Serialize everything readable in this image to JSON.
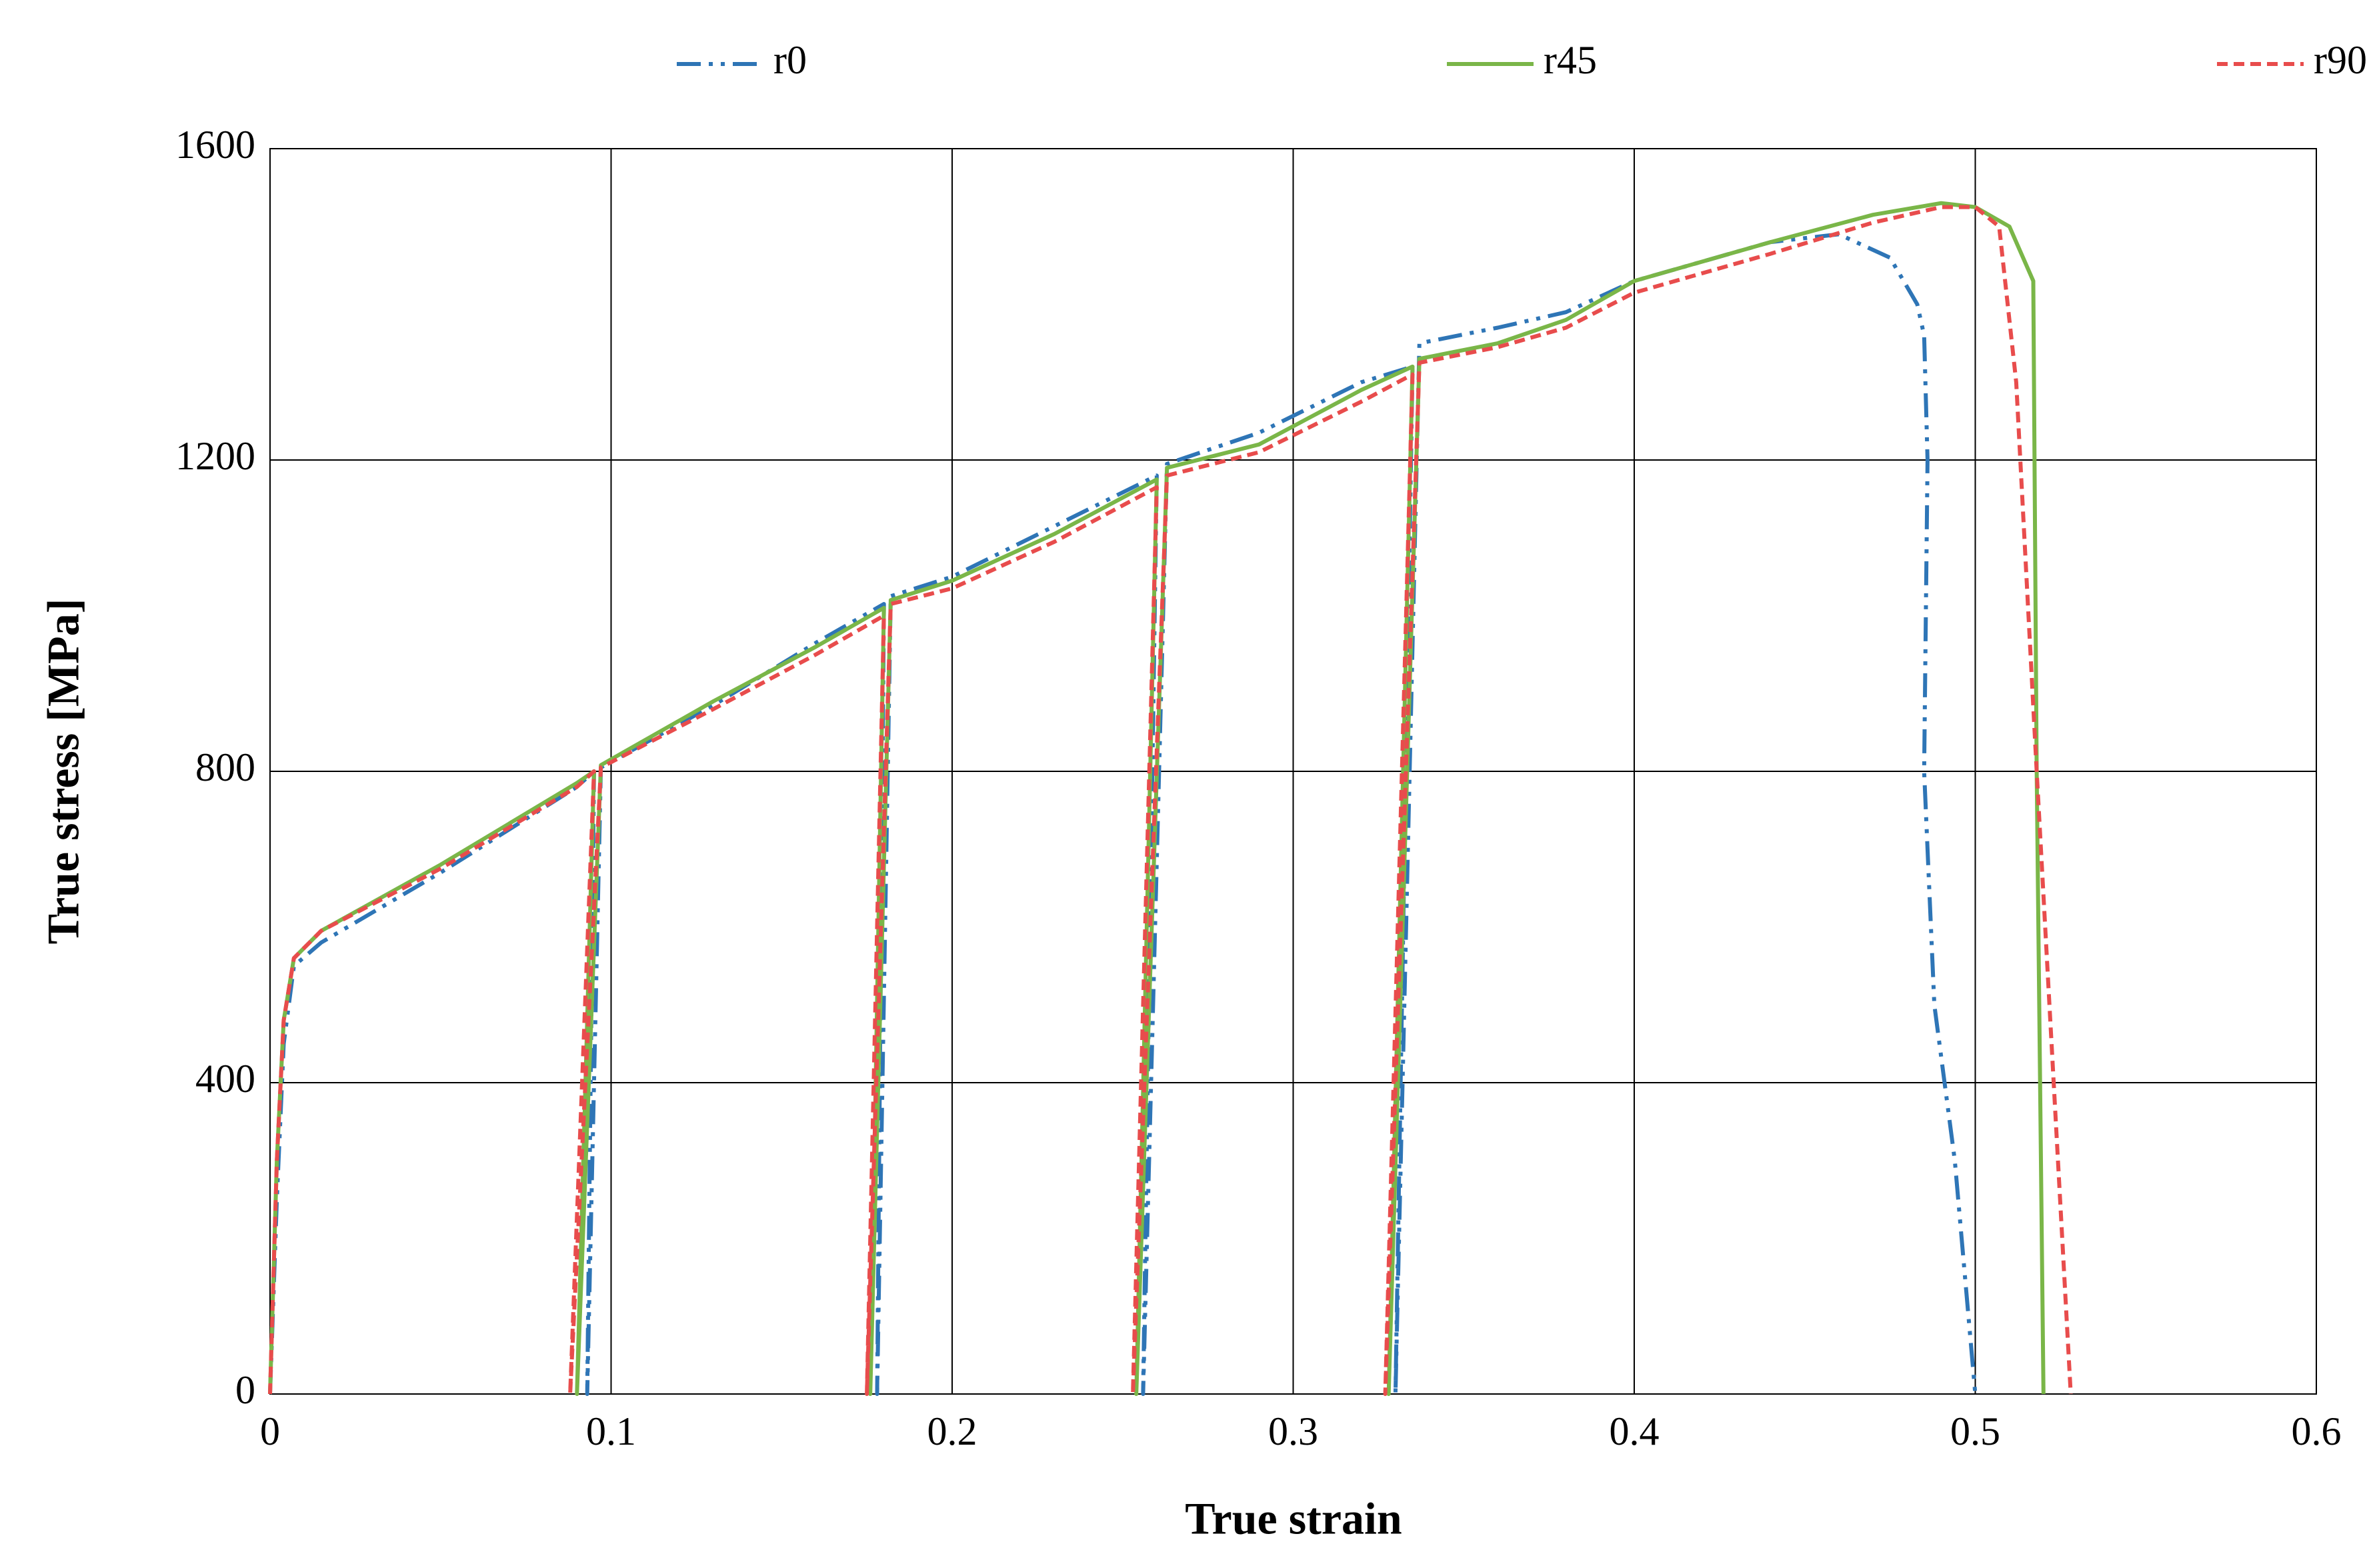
{
  "chart_data": {
    "type": "line",
    "x_label": "True strain",
    "y_label": "True stress [MPa]",
    "xlim": [
      0,
      0.6
    ],
    "xticks": [
      0,
      0.1,
      0.2,
      0.3,
      0.4,
      0.5,
      0.6
    ],
    "ylim": [
      0,
      1600
    ],
    "yticks": [
      0,
      400,
      800,
      1200,
      1600
    ],
    "grid": true,
    "legend": "top",
    "series": [
      {
        "name": "r0",
        "color": "#2e75b6",
        "dash": "dashdot",
        "x": [
          0,
          0.002,
          0.004,
          0.007,
          0.015,
          0.05,
          0.09,
          0.095,
          0.093,
          0.097,
          0.13,
          0.16,
          0.18,
          0.178,
          0.182,
          0.2,
          0.23,
          0.26,
          0.256,
          0.263,
          0.29,
          0.32,
          0.335,
          0.33,
          0.337,
          0.36,
          0.38,
          0.4,
          0.44,
          0.46,
          0.475,
          0.483,
          0.485,
          0.486,
          0.485,
          0.488,
          0.494,
          0.5
        ],
        "values": [
          0,
          250,
          450,
          550,
          580,
          670,
          780,
          800,
          0,
          805,
          885,
          965,
          1015,
          0,
          1025,
          1050,
          1115,
          1180,
          0,
          1195,
          1235,
          1300,
          1320,
          0,
          1350,
          1370,
          1390,
          1430,
          1480,
          1490,
          1460,
          1400,
          1360,
          1200,
          800,
          500,
          300,
          0
        ]
      },
      {
        "name": "r45",
        "color": "#7ab648",
        "dash": "solid",
        "x": [
          0,
          0.002,
          0.004,
          0.007,
          0.015,
          0.05,
          0.09,
          0.095,
          0.09,
          0.097,
          0.13,
          0.16,
          0.18,
          0.176,
          0.182,
          0.2,
          0.23,
          0.26,
          0.254,
          0.263,
          0.29,
          0.32,
          0.335,
          0.328,
          0.337,
          0.36,
          0.38,
          0.4,
          0.44,
          0.47,
          0.49,
          0.5,
          0.51,
          0.517,
          0.518,
          0.52
        ],
        "values": [
          0,
          300,
          480,
          560,
          595,
          680,
          785,
          800,
          0,
          808,
          890,
          960,
          1010,
          0,
          1020,
          1045,
          1105,
          1175,
          0,
          1190,
          1220,
          1290,
          1320,
          0,
          1330,
          1350,
          1380,
          1430,
          1480,
          1515,
          1530,
          1525,
          1500,
          1430,
          800,
          0
        ]
      },
      {
        "name": "r90",
        "color": "#e84c4c",
        "dash": "dashed",
        "x": [
          0,
          0.002,
          0.004,
          0.007,
          0.015,
          0.05,
          0.09,
          0.095,
          0.088,
          0.097,
          0.13,
          0.16,
          0.18,
          0.175,
          0.182,
          0.2,
          0.23,
          0.26,
          0.253,
          0.263,
          0.29,
          0.32,
          0.335,
          0.327,
          0.337,
          0.36,
          0.38,
          0.4,
          0.44,
          0.47,
          0.49,
          0.5,
          0.507,
          0.512,
          0.518,
          0.523,
          0.528
        ],
        "values": [
          0,
          300,
          480,
          560,
          595,
          675,
          780,
          800,
          0,
          805,
          880,
          950,
          1000,
          0,
          1015,
          1035,
          1095,
          1165,
          0,
          1180,
          1210,
          1275,
          1310,
          0,
          1325,
          1345,
          1370,
          1415,
          1465,
          1505,
          1525,
          1525,
          1500,
          1300,
          800,
          400,
          0
        ]
      }
    ]
  }
}
